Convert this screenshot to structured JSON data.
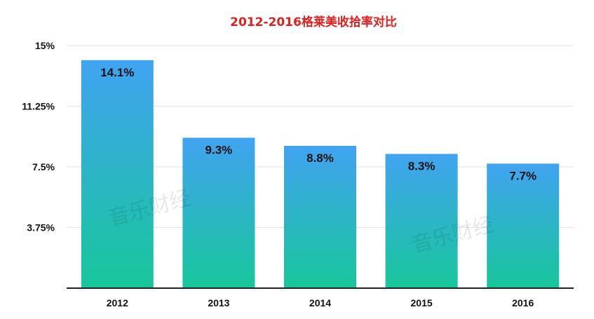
{
  "chart_data": {
    "type": "bar",
    "title": "2012-2016格莱美收拾率对比",
    "categories": [
      "2012",
      "2013",
      "2014",
      "2015",
      "2016"
    ],
    "values": [
      14.1,
      9.3,
      8.8,
      8.3,
      7.7
    ],
    "data_labels": [
      "14.1%",
      "9.3%",
      "8.8%",
      "8.3%",
      "7.7%"
    ],
    "y_ticks": [
      0,
      3.75,
      7.5,
      11.25,
      15
    ],
    "y_tick_labels": [
      "",
      "3.75%",
      "7.5%",
      "11.25%",
      "15%"
    ],
    "ylim": [
      0,
      15
    ],
    "grid": true,
    "legend": "none",
    "xlabel": "",
    "ylabel": ""
  },
  "colors": {
    "title": "#e0201e",
    "bar_top": "#41a3f1",
    "bar_bottom": "#17c79a",
    "grid": "#e2e2e2",
    "axis": "#222222",
    "text": "#111111"
  },
  "watermarks": [
    "音乐财经",
    "音乐财经"
  ]
}
